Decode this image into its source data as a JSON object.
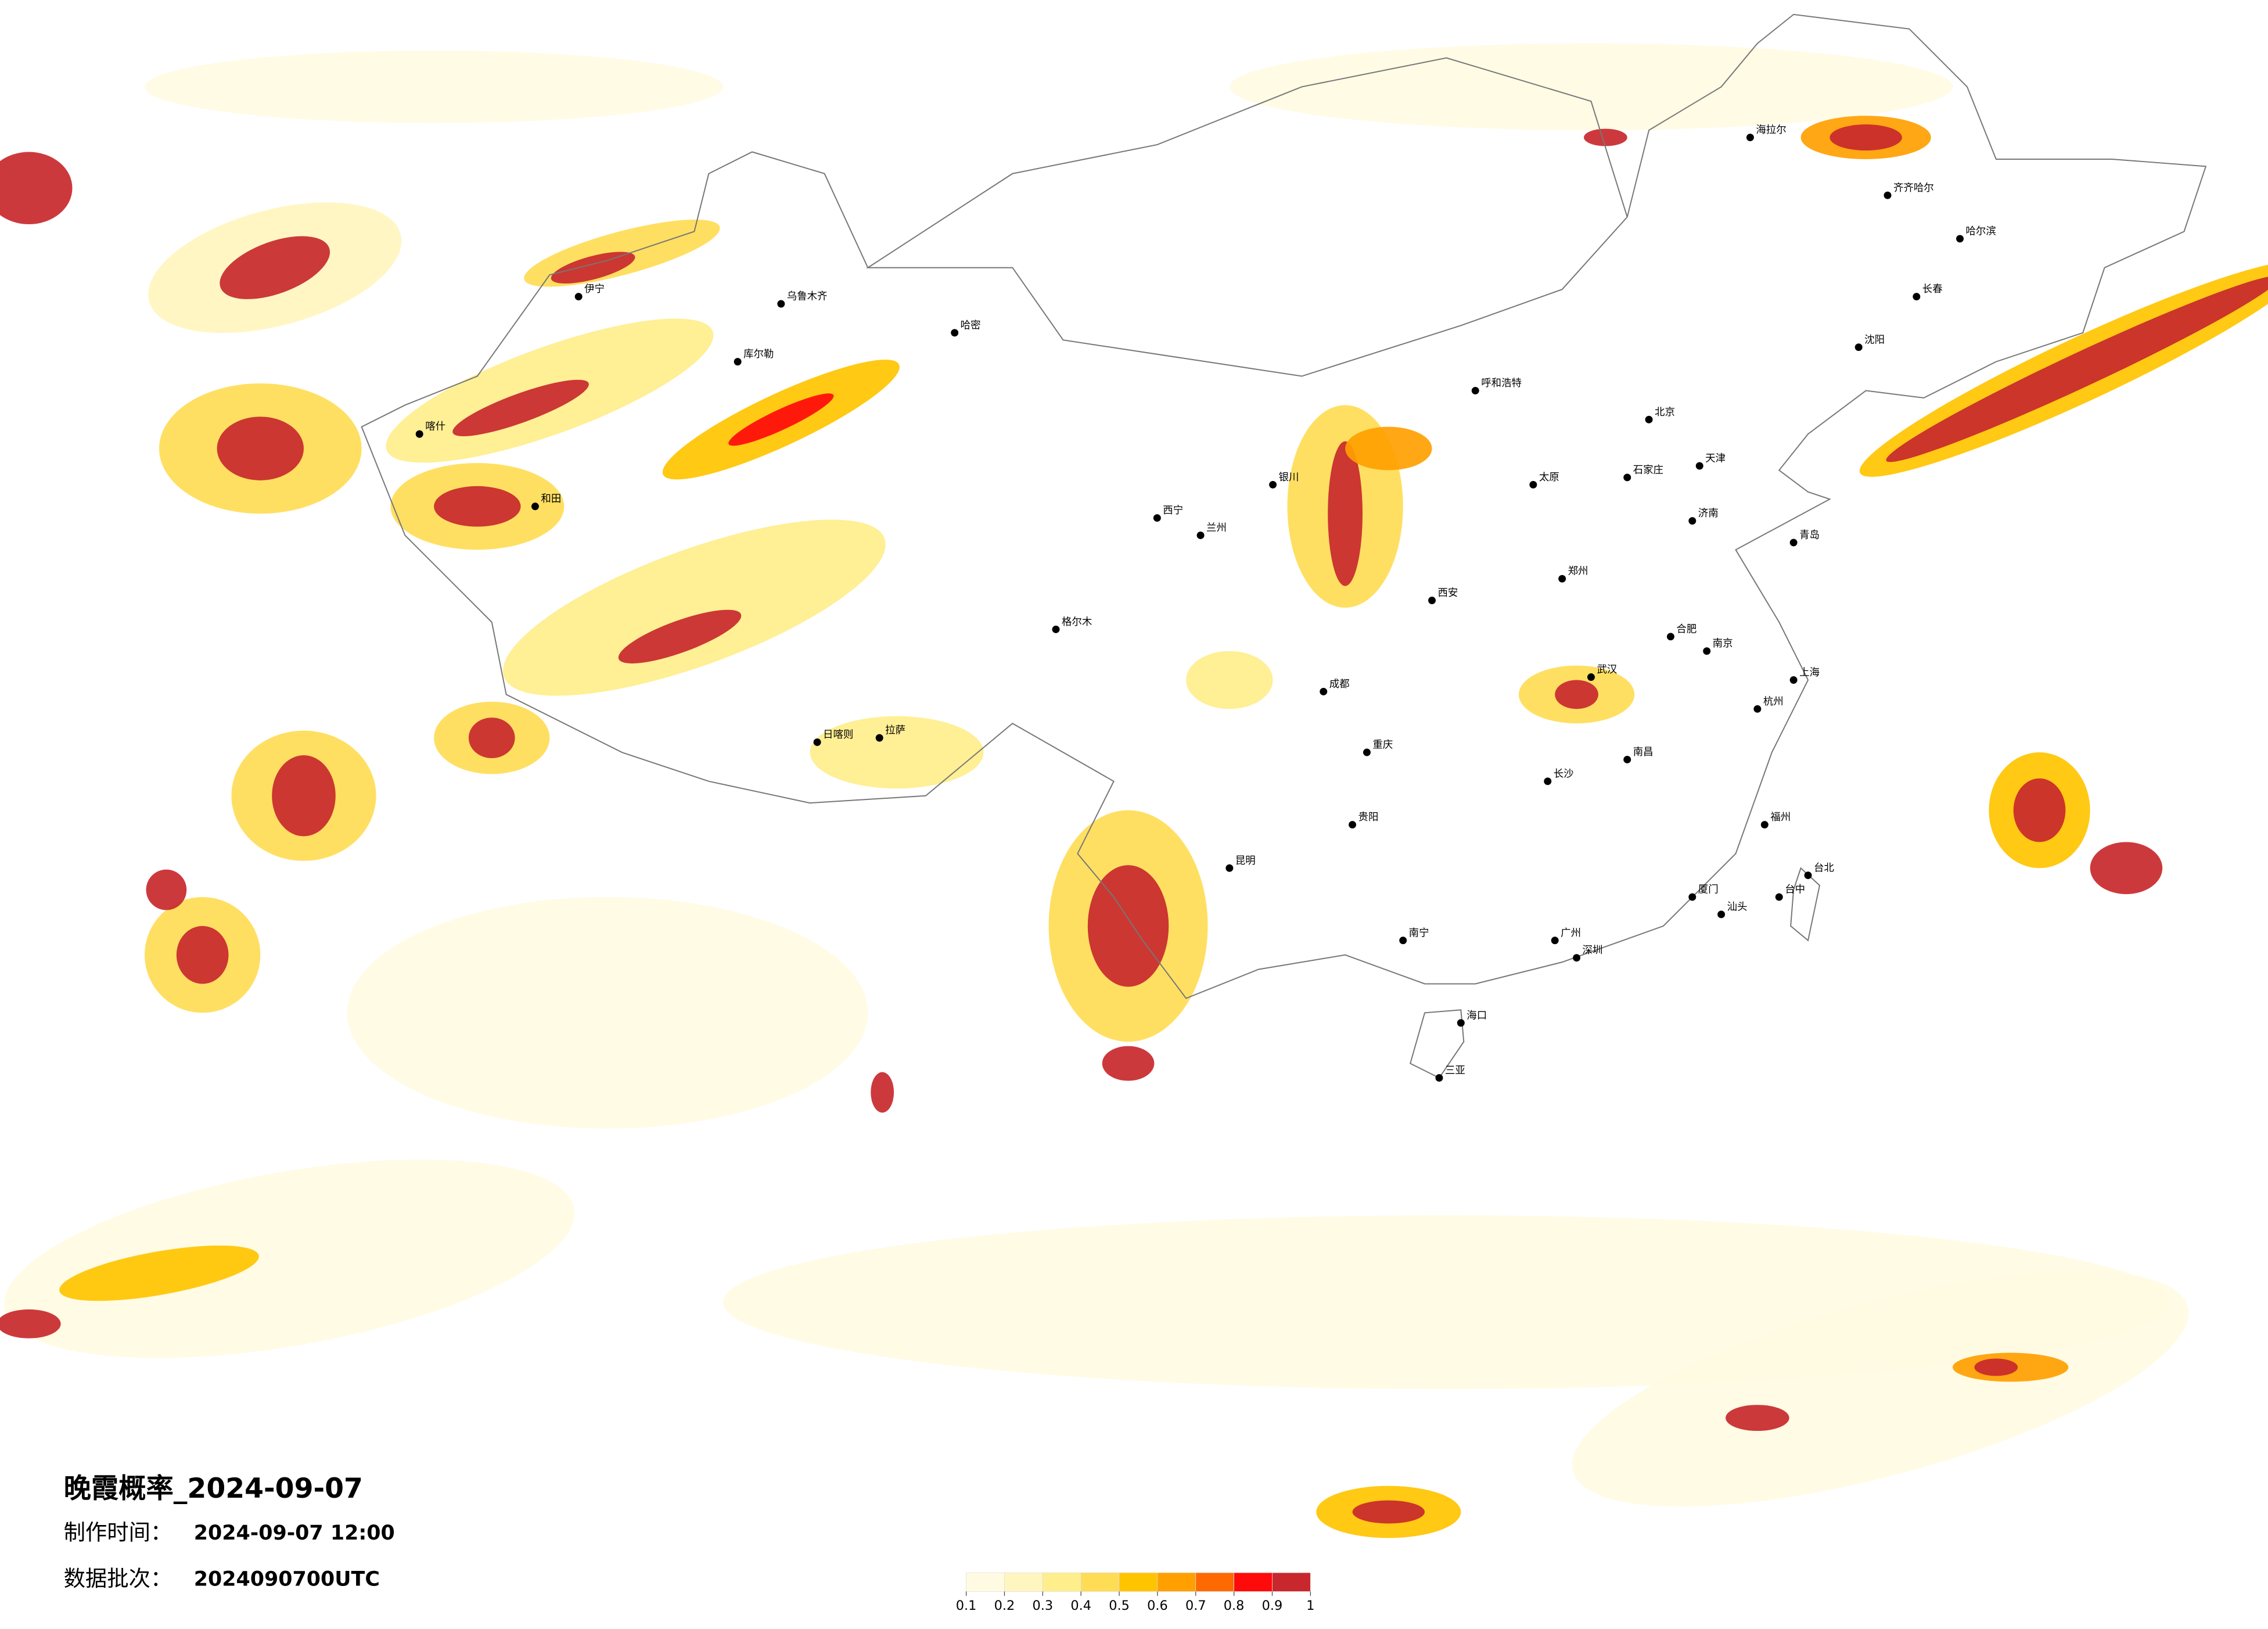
{
  "title": "晚霞概率_2024-09-07",
  "info": [
    {
      "label": "制作时间：",
      "value": "2024-09-07 12:00"
    },
    {
      "label": "数据批次：",
      "value": "2024090700UTC"
    }
  ],
  "legend": {
    "colors": [
      "#fffbe3",
      "#fff5bf",
      "#ffee8c",
      "#ffdc55",
      "#ffc400",
      "#ffa000",
      "#ff6a00",
      "#ff0a0a",
      "#c8282d"
    ],
    "ticks": [
      0.1,
      0.2,
      0.3,
      0.4,
      0.5,
      0.6,
      0.7,
      0.8,
      0.9,
      1
    ]
  },
  "cities": [
    "北京",
    "天津",
    "上海",
    "广州",
    "深圳",
    "重庆",
    "成都",
    "武汉",
    "西安",
    "郑州",
    "长沙",
    "南京",
    "杭州",
    "福州",
    "台北",
    "台中",
    "昆明",
    "贵阳",
    "南宁",
    "海口",
    "拉萨",
    "乌鲁木齐",
    "哈尔滨",
    "长春",
    "沈阳",
    "呼和浩特",
    "银川",
    "兰州",
    "西宁",
    "海拉尔",
    "齐齐哈尔",
    "库尔勒",
    "喀什",
    "伊宁",
    "哈密",
    "格尔木",
    "日喀则",
    "和田",
    "太原",
    "石家庄",
    "济南",
    "青岛",
    "南昌",
    "厦门",
    "汕头",
    "三亚",
    "合肥"
  ]
}
